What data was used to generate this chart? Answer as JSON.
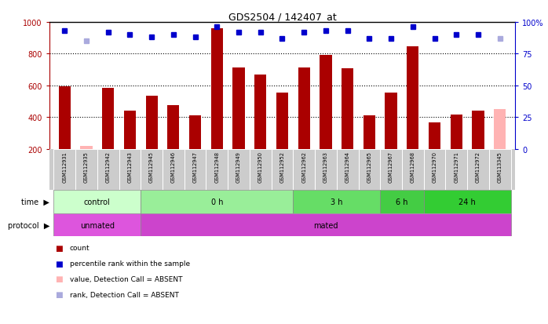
{
  "title": "GDS2504 / 142407_at",
  "samples": [
    "GSM112931",
    "GSM112935",
    "GSM112942",
    "GSM112943",
    "GSM112945",
    "GSM112946",
    "GSM112947",
    "GSM112948",
    "GSM112949",
    "GSM112950",
    "GSM112952",
    "GSM112962",
    "GSM112963",
    "GSM112964",
    "GSM112965",
    "GSM112967",
    "GSM112968",
    "GSM112970",
    "GSM112971",
    "GSM112972",
    "GSM113345"
  ],
  "counts": [
    595,
    220,
    585,
    440,
    535,
    475,
    410,
    960,
    715,
    668,
    555,
    715,
    790,
    710,
    410,
    555,
    845,
    365,
    415,
    440,
    450
  ],
  "absent_flags": [
    false,
    true,
    false,
    false,
    false,
    false,
    false,
    false,
    false,
    false,
    false,
    false,
    false,
    false,
    false,
    false,
    false,
    false,
    false,
    false,
    true
  ],
  "ranks": [
    93,
    85,
    92,
    90,
    88,
    90,
    88,
    96,
    92,
    92,
    87,
    92,
    93,
    93,
    87,
    87,
    96,
    87,
    90,
    90,
    87
  ],
  "absent_rank_flags": [
    false,
    true,
    false,
    false,
    false,
    false,
    false,
    false,
    false,
    false,
    false,
    false,
    false,
    false,
    false,
    false,
    false,
    false,
    false,
    false,
    true
  ],
  "bar_color_normal": "#aa0000",
  "bar_color_absent": "#ffb3b3",
  "dot_color_normal": "#0000cc",
  "dot_color_absent": "#aaaadd",
  "ylim_left": [
    200,
    1000
  ],
  "ylim_right": [
    0,
    100
  ],
  "yticks_left": [
    200,
    400,
    600,
    800,
    1000
  ],
  "yticks_right": [
    0,
    25,
    50,
    75,
    100
  ],
  "grid_vals": [
    400,
    600,
    800
  ],
  "time_groups": [
    {
      "label": "control",
      "start": 0,
      "end": 4,
      "color": "#ccffcc"
    },
    {
      "label": "0 h",
      "start": 4,
      "end": 11,
      "color": "#99ee99"
    },
    {
      "label": "3 h",
      "start": 11,
      "end": 15,
      "color": "#66dd66"
    },
    {
      "label": "6 h",
      "start": 15,
      "end": 17,
      "color": "#44cc44"
    },
    {
      "label": "24 h",
      "start": 17,
      "end": 21,
      "color": "#33cc33"
    }
  ],
  "protocol_groups": [
    {
      "label": "unmated",
      "start": 0,
      "end": 4,
      "color": "#dd55dd"
    },
    {
      "label": "mated",
      "start": 4,
      "end": 21,
      "color": "#cc44cc"
    }
  ],
  "legend_items": [
    {
      "label": "count",
      "color": "#aa0000"
    },
    {
      "label": "percentile rank within the sample",
      "color": "#0000cc"
    },
    {
      "label": "value, Detection Call = ABSENT",
      "color": "#ffb3b3"
    },
    {
      "label": "rank, Detection Call = ABSENT",
      "color": "#aaaadd"
    }
  ],
  "plot_bg_color": "#ffffff",
  "tick_area_color": "#cccccc",
  "fig_bg_color": "#ffffff"
}
